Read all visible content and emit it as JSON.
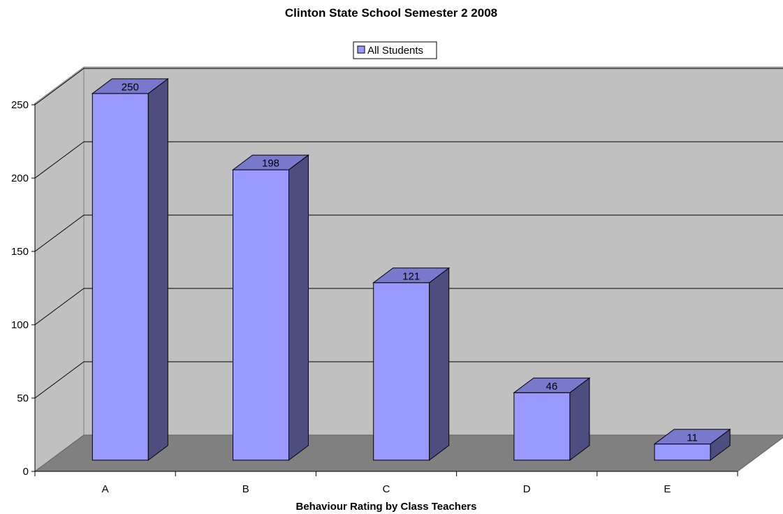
{
  "chart_data": {
    "type": "bar",
    "title": "Clinton State School Semester 2 2008",
    "xlabel": "Behaviour Rating by Class Teachers",
    "ylabel": "",
    "categories": [
      "A",
      "B",
      "C",
      "D",
      "E"
    ],
    "series": [
      {
        "name": "All Students",
        "values": [
          250,
          198,
          121,
          46,
          11
        ]
      }
    ],
    "data_labels": [
      "250",
      "198",
      "121",
      "46",
      "11"
    ],
    "ylim": [
      0,
      250
    ],
    "yticks": [
      0,
      50,
      100,
      150,
      200,
      250
    ],
    "ytick_labels": [
      "0",
      "50",
      "100",
      "150",
      "200",
      "250"
    ],
    "grid": true,
    "legend_position": "top-center",
    "style": "3d-column",
    "colors": {
      "bar_front": "#9999ff",
      "bar_side": "#4d4d80",
      "bar_top": "#7878cc",
      "back_wall": "#c0c0c0",
      "left_wall": "#c0c0c0",
      "floor": "#808080"
    }
  }
}
